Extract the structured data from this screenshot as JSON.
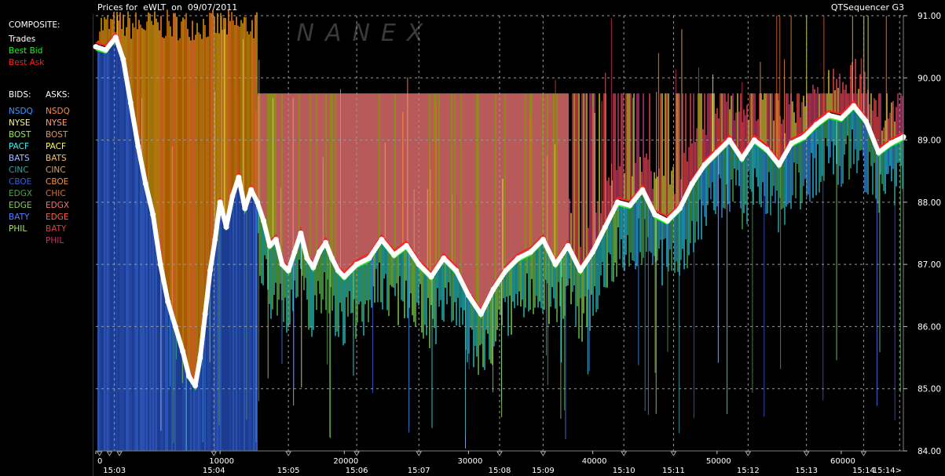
{
  "header": {
    "title": "Prices for  eWLT  on  09/07/2011",
    "app_name": "QTSequencer G3",
    "watermark": "NANEX"
  },
  "legend": {
    "composite_label": "COMPOSITE:",
    "composite_items": [
      {
        "label": "Trades",
        "color": "#ffffff"
      },
      {
        "label": "Best Bid",
        "color": "#22ee22"
      },
      {
        "label": "Best Ask",
        "color": "#ff2020"
      }
    ],
    "bids_label": "BIDS:",
    "asks_label": "ASKS:",
    "bids": [
      {
        "label": "NSDQ",
        "color": "#3d9aff"
      },
      {
        "label": "NYSE",
        "color": "#f5f59a"
      },
      {
        "label": "BOST",
        "color": "#9ae860"
      },
      {
        "label": "PACF",
        "color": "#40f0f0"
      },
      {
        "label": "BATS",
        "color": "#a0c4ff"
      },
      {
        "label": "CINC",
        "color": "#36a0a0"
      },
      {
        "label": "CBOE",
        "color": "#3a5ed8"
      },
      {
        "label": "EDGX",
        "color": "#4ea04e"
      },
      {
        "label": "EDGE",
        "color": "#8acd5a"
      },
      {
        "label": "BATY",
        "color": "#5580ff"
      },
      {
        "label": "PHIL",
        "color": "#b0e070"
      }
    ],
    "asks": [
      {
        "label": "NSDQ",
        "color": "#ff8a40"
      },
      {
        "label": "NYSE",
        "color": "#ff9e80"
      },
      {
        "label": "BOST",
        "color": "#d89a60"
      },
      {
        "label": "PACF",
        "color": "#ffff40"
      },
      {
        "label": "BATS",
        "color": "#ffc060"
      },
      {
        "label": "CINC",
        "color": "#d0a070"
      },
      {
        "label": "CBOE",
        "color": "#ff9040"
      },
      {
        "label": "CHIC",
        "color": "#e07030"
      },
      {
        "label": "EDGX",
        "color": "#ff7070"
      },
      {
        "label": "EDGE",
        "color": "#ff6040"
      },
      {
        "label": "BATY",
        "color": "#e04040"
      },
      {
        "label": "PHIL",
        "color": "#d03060"
      }
    ]
  },
  "chart_data": {
    "type": "line",
    "ylim": [
      84.0,
      91.0
    ],
    "y_ticks": [
      "84.00",
      "85.00",
      "86.00",
      "87.00",
      "88.00",
      "89.00",
      "90.00",
      "91.00"
    ],
    "xlim": [
      0,
      65000
    ],
    "x_ticks_seq": [
      {
        "value": 0,
        "label": "0"
      },
      {
        "value": 10000,
        "label": "10000"
      },
      {
        "value": 20000,
        "label": "20000"
      },
      {
        "value": 30000,
        "label": "30000"
      },
      {
        "value": 40000,
        "label": "40000"
      },
      {
        "value": 50000,
        "label": "50000"
      },
      {
        "value": 60000,
        "label": "60000"
      }
    ],
    "x_ticks_time": [
      {
        "value": 1500,
        "label": "15:03"
      },
      {
        "value": 9500,
        "label": "15:04"
      },
      {
        "value": 15500,
        "label": "15:05"
      },
      {
        "value": 21000,
        "label": "15:06"
      },
      {
        "value": 26000,
        "label": "15:07"
      },
      {
        "value": 32500,
        "label": "15:08"
      },
      {
        "value": 36000,
        "label": "15:09"
      },
      {
        "value": 42500,
        "label": "15:10"
      },
      {
        "value": 46500,
        "label": "15:11"
      },
      {
        "value": 52500,
        "label": "15:12"
      },
      {
        "value": 57200,
        "label": "15:13"
      },
      {
        "value": 61800,
        "label": "15:14"
      },
      {
        "value": 64700,
        "label": "15:14>"
      }
    ],
    "series": [
      {
        "name": "Trades",
        "color": "#ffffff",
        "x": [
          0,
          800,
          1600,
          2200,
          2800,
          3400,
          4000,
          4600,
          5200,
          5800,
          6400,
          7000,
          7500,
          8000,
          8400,
          8800,
          9200,
          9600,
          10000,
          10500,
          11000,
          11500,
          12000,
          12500,
          13000,
          13500,
          14000,
          14500,
          15000,
          15500,
          16000,
          16500,
          17000,
          17500,
          18000,
          18500,
          19000,
          19500,
          20000,
          21000,
          22000,
          23000,
          24000,
          25000,
          26000,
          27000,
          28000,
          29000,
          30000,
          31000,
          32000,
          33000,
          34000,
          35000,
          36000,
          37000,
          38000,
          39000,
          40000,
          41000,
          42000,
          43000,
          44000,
          45000,
          46000,
          47000,
          48000,
          49000,
          50000,
          51000,
          52000,
          53000,
          54000,
          55000,
          56000,
          57000,
          58000,
          59000,
          60000,
          61000,
          62000,
          63000,
          64000,
          65000
        ],
        "values": [
          90.5,
          90.45,
          90.65,
          90.3,
          89.6,
          88.9,
          88.3,
          87.8,
          87.0,
          86.4,
          86.0,
          85.6,
          85.2,
          85.05,
          85.5,
          86.2,
          86.9,
          87.4,
          88.0,
          87.6,
          88.1,
          88.4,
          87.9,
          88.2,
          88.0,
          87.7,
          87.3,
          87.4,
          87.0,
          86.9,
          87.2,
          87.5,
          87.1,
          86.95,
          87.2,
          87.35,
          87.1,
          86.9,
          86.8,
          87.0,
          87.1,
          87.4,
          87.15,
          87.3,
          87.0,
          86.8,
          87.1,
          86.9,
          86.5,
          86.2,
          86.6,
          86.9,
          87.1,
          87.2,
          87.4,
          87.0,
          87.3,
          86.9,
          87.2,
          87.6,
          88.0,
          87.95,
          88.2,
          87.8,
          87.7,
          87.9,
          88.3,
          88.6,
          88.8,
          89.0,
          88.7,
          89.0,
          88.85,
          88.6,
          88.95,
          89.05,
          89.25,
          89.4,
          89.35,
          89.55,
          89.3,
          88.8,
          88.95,
          89.05
        ]
      }
    ]
  }
}
